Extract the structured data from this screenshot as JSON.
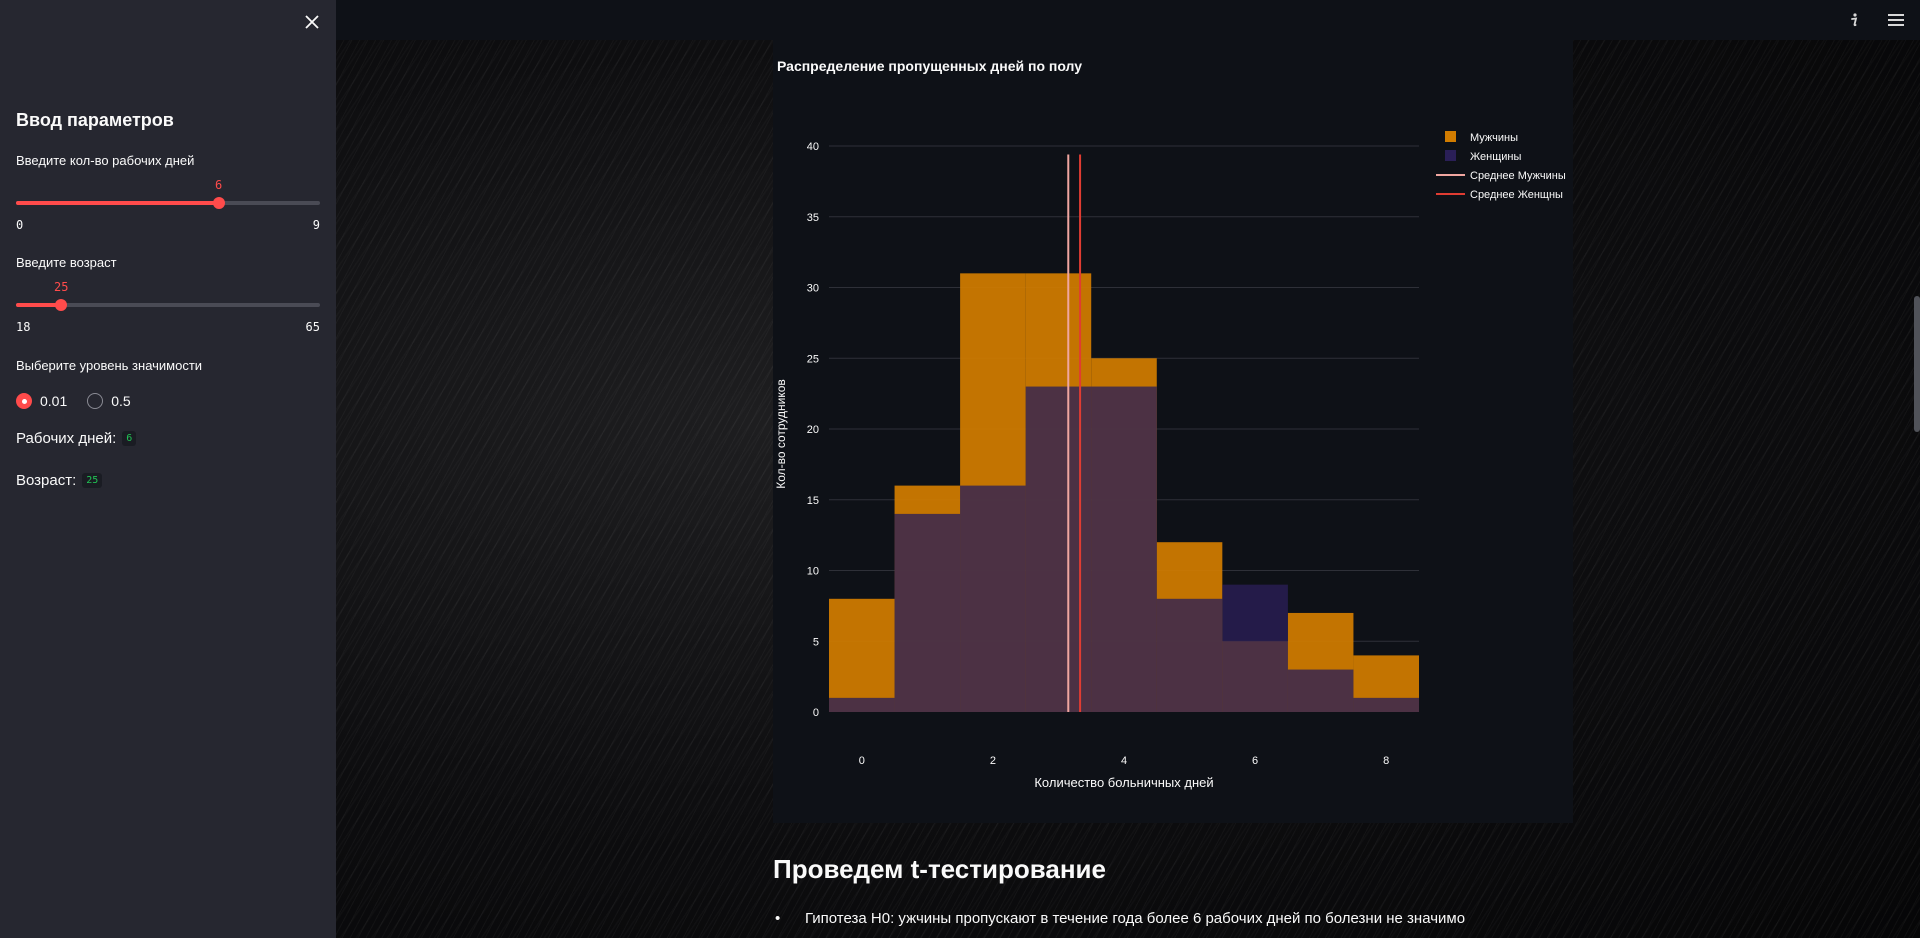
{
  "header": {
    "info_icon": "info-icon",
    "menu_icon": "hamburger-menu-icon"
  },
  "sidebar": {
    "close_icon": "close-icon",
    "title": "Ввод параметров",
    "workdays_slider": {
      "label": "Введите кол-во рабочих дней",
      "value": "6",
      "min": "0",
      "max": "9",
      "value_num": 6,
      "min_num": 0,
      "max_num": 9
    },
    "age_slider": {
      "label": "Введите возраст",
      "value": "25",
      "min": "18",
      "max": "65",
      "value_num": 25,
      "min_num": 18,
      "max_num": 65
    },
    "significance": {
      "label": "Выберите уровень значимости",
      "options": [
        "0.01",
        "0.5"
      ],
      "selected": "0.01"
    },
    "workdays_line": {
      "label": "Рабочих дней:",
      "value": "6"
    },
    "age_line": {
      "label": "Возраст:",
      "value": "25"
    }
  },
  "main": {
    "section_title": "Проведем t-тестирование",
    "bullet_1": "Гипотеза H0: ужчины пропускают в течение года более 6 рабочих дней по болезни не значимо"
  },
  "colors": {
    "accent": "#ff4b4b",
    "men_bar": "#d17c00",
    "women_bar": "#2a1f57",
    "overlap": "#593656",
    "mean_men": "#f0a6a0",
    "mean_women": "#e03c32"
  },
  "chart_data": {
    "type": "bar",
    "title": "Распределение пропущенных дней по полу",
    "xlabel": "Количество больничных дней",
    "ylabel": "Кол-во сотрудников",
    "x": [
      0,
      1,
      2,
      3,
      4,
      5,
      6,
      7,
      8
    ],
    "x_ticks": [
      "0",
      "2",
      "4",
      "6",
      "8"
    ],
    "y_ticks": [
      "0",
      "5",
      "10",
      "15",
      "20",
      "25",
      "30",
      "35",
      "40"
    ],
    "ylim": [
      0,
      40
    ],
    "xlim": [
      -0.5,
      8.5
    ],
    "barmode": "overlay",
    "grid": true,
    "legend_position": "top-right",
    "series": [
      {
        "name": "Мужчины",
        "values": [
          8,
          16,
          31,
          31,
          25,
          12,
          5,
          7,
          4
        ]
      },
      {
        "name": "Женщины",
        "values": [
          1,
          14,
          16,
          23,
          23,
          8,
          9,
          3,
          1
        ]
      }
    ],
    "lines": [
      {
        "name": "Среднее Мужчины",
        "x": 3.15
      },
      {
        "name": "Среднее Женщны",
        "x": 3.33
      }
    ]
  }
}
